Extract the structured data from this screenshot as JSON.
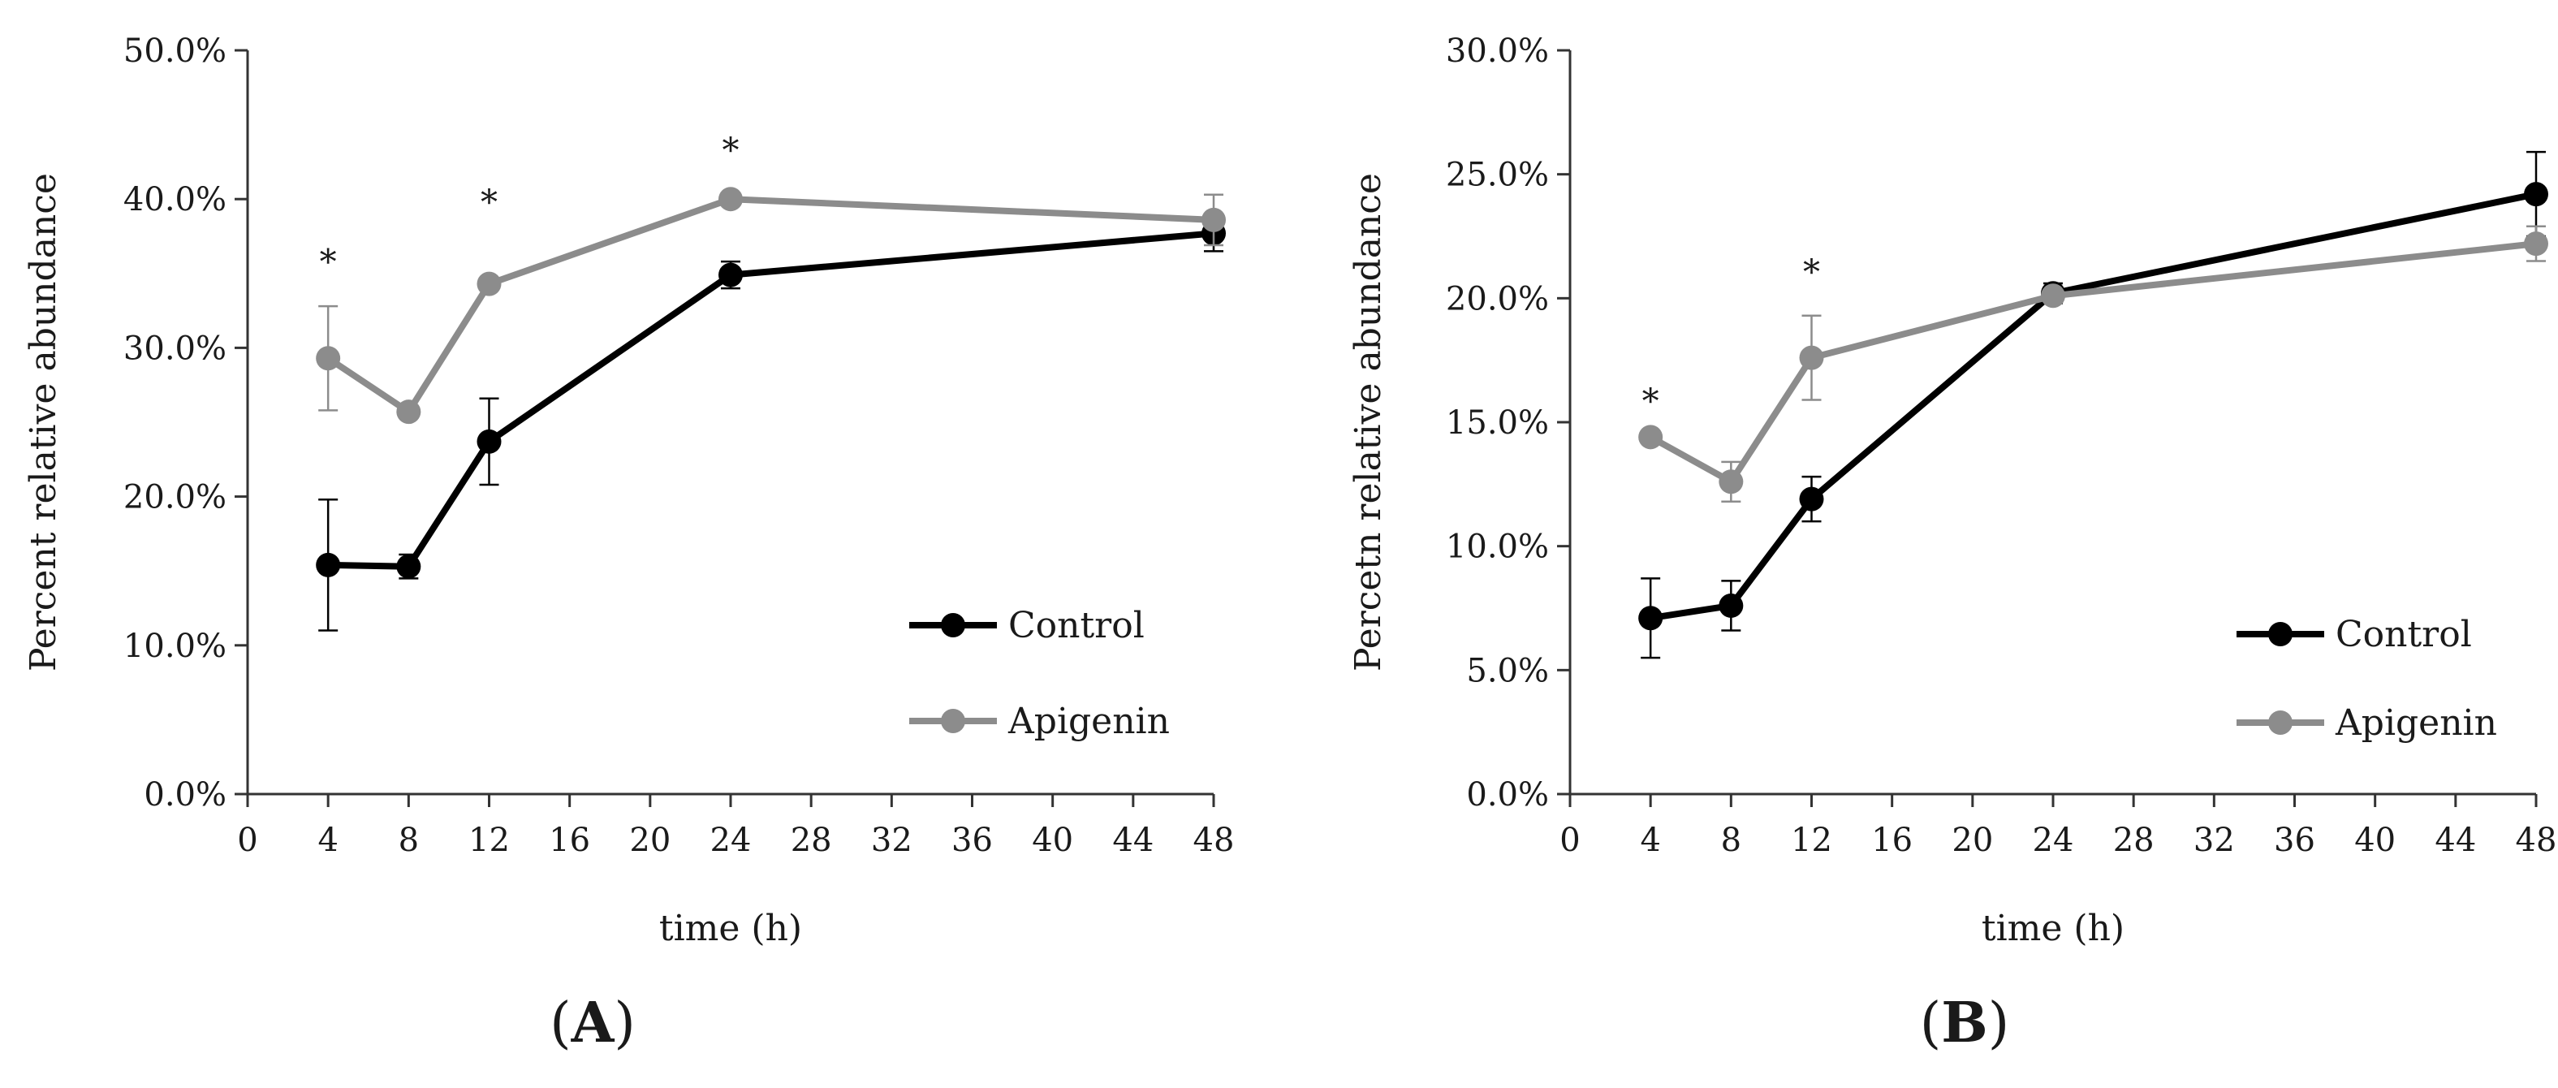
{
  "chart_data": [
    {
      "type": "line",
      "panel_label": "A",
      "xlabel": "time (h)",
      "ylabel": "Percent relative abundance",
      "xlim": [
        0,
        48
      ],
      "ylim": [
        0,
        0.5
      ],
      "xticks": [
        0,
        4,
        8,
        12,
        16,
        20,
        24,
        28,
        32,
        36,
        40,
        44,
        48
      ],
      "yticks": [
        0,
        0.1,
        0.2,
        0.3,
        0.4,
        0.5
      ],
      "yticklabels": [
        "0.0%",
        "10.0%",
        "20.0%",
        "30.0%",
        "40.0%",
        "50.0%"
      ],
      "x": [
        4,
        8,
        12,
        24,
        48
      ],
      "series": [
        {
          "name": "Control",
          "color": "#000000",
          "values": [
            0.154,
            0.153,
            0.237,
            0.349,
            0.377
          ],
          "errors": [
            0.044,
            0.008,
            0.029,
            0.009,
            0.012
          ]
        },
        {
          "name": "Apigenin",
          "color": "#8c8c8c",
          "values": [
            0.293,
            0.257,
            0.343,
            0.4,
            0.386
          ],
          "errors": [
            0.035,
            0.0,
            0.0,
            0.0,
            0.017
          ]
        }
      ],
      "annotations": [
        {
          "x": 4,
          "y": 0.362,
          "text": "*"
        },
        {
          "x": 12,
          "y": 0.402,
          "text": "*"
        },
        {
          "x": 24,
          "y": 0.437,
          "text": "*"
        }
      ],
      "legend": "bottom-right"
    },
    {
      "type": "line",
      "panel_label": "B",
      "xlabel": "time (h)",
      "ylabel": "Percetn relative abundance",
      "xlim": [
        0,
        48
      ],
      "ylim": [
        0,
        0.3
      ],
      "xticks": [
        0,
        4,
        8,
        12,
        16,
        20,
        24,
        28,
        32,
        36,
        40,
        44,
        48
      ],
      "yticks": [
        0,
        0.05,
        0.1,
        0.15,
        0.2,
        0.25,
        0.3
      ],
      "yticklabels": [
        "0.0%",
        "5.0%",
        "10.0%",
        "15.0%",
        "20.0%",
        "25.0%",
        "30.0%"
      ],
      "x": [
        4,
        8,
        12,
        24,
        48
      ],
      "series": [
        {
          "name": "Control",
          "color": "#000000",
          "values": [
            0.071,
            0.076,
            0.119,
            0.202,
            0.242
          ],
          "errors": [
            0.016,
            0.01,
            0.009,
            0.004,
            0.017
          ]
        },
        {
          "name": "Apigenin",
          "color": "#8c8c8c",
          "values": [
            0.144,
            0.126,
            0.176,
            0.201,
            0.222
          ],
          "errors": [
            0.0,
            0.008,
            0.017,
            0.0,
            0.007
          ]
        }
      ],
      "annotations": [
        {
          "x": 4,
          "y": 0.161,
          "text": "*"
        },
        {
          "x": 12,
          "y": 0.213,
          "text": "*"
        }
      ],
      "legend": "bottom-right"
    }
  ]
}
